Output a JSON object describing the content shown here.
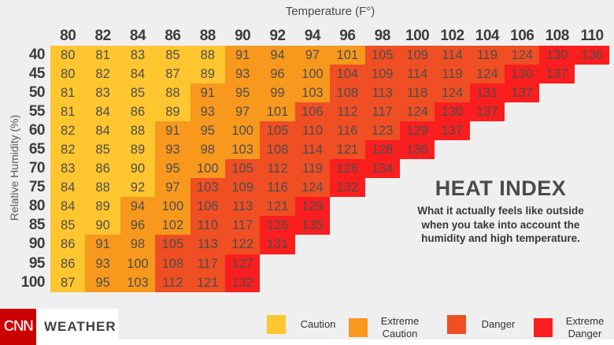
{
  "axes": {
    "x_title": "Temperature (F°)",
    "y_title": "Relative Humidity (%)"
  },
  "info": {
    "title": "HEAT INDEX",
    "subtitle_lines": [
      "What it actually feels like outside",
      "when you take into account the",
      "humidity and high temperature."
    ]
  },
  "footer": {
    "logo": "CNN",
    "label": "WEATHER"
  },
  "colors": {
    "background": "#EFEFEF",
    "caution": "#FFC62F",
    "extreme_caution": "#F8981D",
    "danger": "#F04E23",
    "extreme_danger": "#FA1E1E",
    "brand_red": "#CB0000",
    "cell_text": "#4D4D4D"
  },
  "chart_data": {
    "type": "heatmap",
    "title": "HEAT INDEX",
    "xlabel": "Temperature (F°)",
    "ylabel": "Relative Humidity (%)",
    "x_ticks": [
      80,
      82,
      84,
      86,
      88,
      90,
      92,
      94,
      96,
      98,
      100,
      102,
      104,
      106,
      108,
      110
    ],
    "y_ticks": [
      40,
      45,
      50,
      55,
      60,
      65,
      70,
      75,
      80,
      85,
      90,
      95,
      100
    ],
    "categories": [
      "Caution",
      "Extreme Caution",
      "Danger",
      "Extreme Danger"
    ],
    "category_colors": [
      "#FFC62F",
      "#F8981D",
      "#F04E23",
      "#FA1E1E"
    ],
    "legend_position": "bottom",
    "legend": [
      {
        "label": "Caution",
        "color": "#FFC62F"
      },
      {
        "label": "Extreme Caution",
        "color": "#F8981D"
      },
      {
        "label": "Danger",
        "color": "#F04E23"
      },
      {
        "label": "Extreme Danger",
        "color": "#FA1E1E"
      }
    ],
    "rows": [
      {
        "humidity": 40,
        "values": [
          80,
          81,
          83,
          85,
          88,
          91,
          94,
          97,
          101,
          105,
          109,
          114,
          119,
          124,
          130,
          136
        ],
        "cats": [
          0,
          0,
          0,
          0,
          0,
          1,
          1,
          1,
          1,
          2,
          2,
          2,
          2,
          2,
          3,
          3
        ]
      },
      {
        "humidity": 45,
        "values": [
          80,
          82,
          84,
          87,
          89,
          93,
          96,
          100,
          104,
          109,
          114,
          119,
          124,
          130,
          137
        ],
        "cats": [
          0,
          0,
          0,
          0,
          0,
          1,
          1,
          1,
          2,
          2,
          2,
          2,
          2,
          3,
          3
        ]
      },
      {
        "humidity": 50,
        "values": [
          81,
          83,
          85,
          88,
          91,
          95,
          99,
          103,
          108,
          113,
          118,
          124,
          131,
          137
        ],
        "cats": [
          0,
          0,
          0,
          0,
          1,
          1,
          1,
          1,
          2,
          2,
          2,
          2,
          3,
          3
        ]
      },
      {
        "humidity": 55,
        "values": [
          81,
          84,
          86,
          89,
          93,
          97,
          101,
          106,
          112,
          117,
          124,
          130,
          137
        ],
        "cats": [
          0,
          0,
          0,
          0,
          1,
          1,
          1,
          2,
          2,
          2,
          2,
          3,
          3
        ]
      },
      {
        "humidity": 60,
        "values": [
          82,
          84,
          88,
          91,
          95,
          100,
          105,
          110,
          116,
          123,
          129,
          137
        ],
        "cats": [
          0,
          0,
          0,
          1,
          1,
          1,
          2,
          2,
          2,
          2,
          3,
          3
        ]
      },
      {
        "humidity": 65,
        "values": [
          82,
          85,
          89,
          93,
          98,
          103,
          108,
          114,
          121,
          128,
          136
        ],
        "cats": [
          0,
          0,
          0,
          1,
          1,
          1,
          2,
          2,
          2,
          3,
          3
        ]
      },
      {
        "humidity": 70,
        "values": [
          83,
          86,
          90,
          95,
          100,
          105,
          112,
          119,
          126,
          134
        ],
        "cats": [
          0,
          0,
          0,
          1,
          1,
          2,
          2,
          2,
          3,
          3
        ]
      },
      {
        "humidity": 75,
        "values": [
          84,
          88,
          92,
          97,
          103,
          109,
          116,
          124,
          132
        ],
        "cats": [
          0,
          0,
          0,
          1,
          2,
          2,
          2,
          2,
          3
        ]
      },
      {
        "humidity": 80,
        "values": [
          84,
          89,
          94,
          100,
          106,
          113,
          121,
          129
        ],
        "cats": [
          0,
          0,
          1,
          1,
          2,
          2,
          2,
          3
        ]
      },
      {
        "humidity": 85,
        "values": [
          85,
          90,
          96,
          102,
          110,
          117,
          126,
          135
        ],
        "cats": [
          0,
          0,
          1,
          1,
          2,
          2,
          3,
          3
        ]
      },
      {
        "humidity": 90,
        "values": [
          86,
          91,
          98,
          105,
          113,
          122,
          131
        ],
        "cats": [
          0,
          1,
          1,
          2,
          2,
          2,
          3
        ]
      },
      {
        "humidity": 95,
        "values": [
          86,
          93,
          100,
          108,
          117,
          127
        ],
        "cats": [
          0,
          1,
          1,
          2,
          2,
          3
        ]
      },
      {
        "humidity": 100,
        "values": [
          87,
          95,
          103,
          112,
          121,
          132
        ],
        "cats": [
          0,
          1,
          1,
          2,
          2,
          3
        ]
      }
    ]
  }
}
